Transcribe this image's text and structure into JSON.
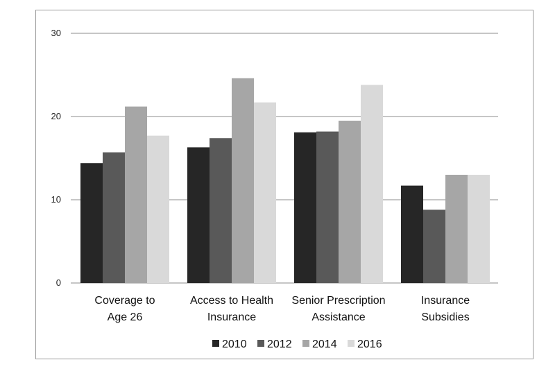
{
  "chart_data": {
    "type": "bar",
    "categories": [
      [
        "Coverage to",
        "Age 26"
      ],
      [
        "Access to Health",
        "Insurance"
      ],
      [
        "Senior Prescription",
        "Assistance"
      ],
      [
        "Insurance",
        "Subsidies"
      ]
    ],
    "series": [
      {
        "name": "2010",
        "color": "#262626",
        "values": [
          14.4,
          16.3,
          18.1,
          11.7
        ]
      },
      {
        "name": "2012",
        "color": "#595959",
        "values": [
          15.7,
          17.4,
          18.2,
          8.8
        ]
      },
      {
        "name": "2014",
        "color": "#a6a6a6",
        "values": [
          21.2,
          24.6,
          19.5,
          13.0
        ]
      },
      {
        "name": "2016",
        "color": "#d9d9d9",
        "values": [
          17.7,
          21.7,
          23.8,
          13.0
        ]
      }
    ],
    "y_ticks": [
      "0",
      "10",
      "20",
      "30"
    ],
    "ylim": [
      0,
      30
    ],
    "grid": true,
    "legend_position": "bottom",
    "gridline_color": "#8c8c8c"
  }
}
